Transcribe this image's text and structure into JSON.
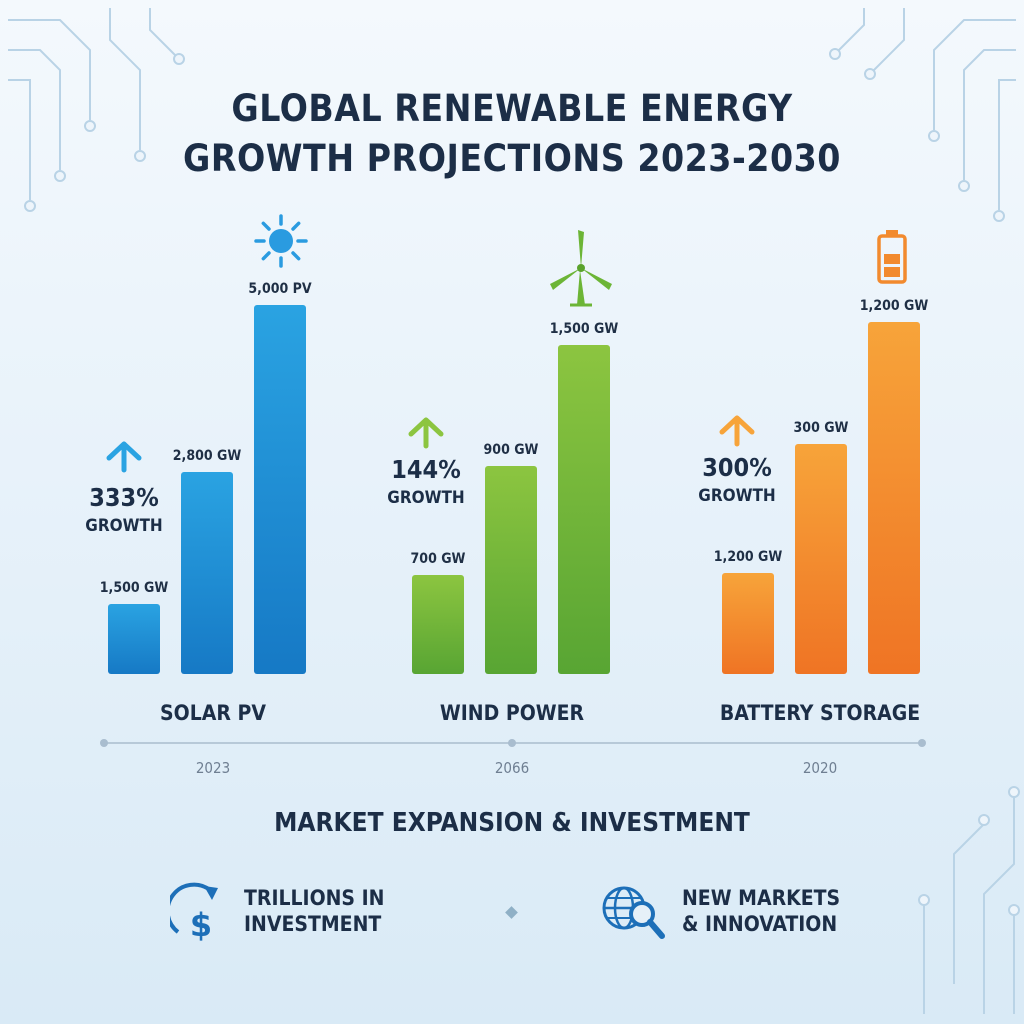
{
  "title": {
    "line1": "GLOBAL RENEWABLE ENERGY",
    "line2": "GROWTH PROJECTIONS 2023-2030"
  },
  "colors": {
    "solar": [
      "#2aa3e2",
      "#1679c5"
    ],
    "wind": [
      "#8cc540",
      "#58a533"
    ],
    "battery": [
      "#f7a43a",
      "#ef7424"
    ],
    "text": "#1c2e47",
    "timeline": "#b7c9d8"
  },
  "chart_data": {
    "type": "bar",
    "groups": [
      {
        "category": "SOLAR PV",
        "icon": "sun-icon",
        "growth_pct": "333%",
        "growth_word": "GROWTH",
        "year": "2023",
        "values": [
          1500,
          2800,
          5000
        ],
        "value_labels": [
          "1,500 GW",
          "2,800 GW",
          "5,000 PV"
        ]
      },
      {
        "category": "WIND POWER",
        "icon": "wind-turbine-icon",
        "growth_pct": "144%",
        "growth_word": "GROWTH",
        "year": "2066",
        "values": [
          700,
          900,
          1500
        ],
        "value_labels": [
          "700 GW",
          "900 GW",
          "1,500 GW"
        ]
      },
      {
        "category": "BATTERY STORAGE",
        "icon": "battery-icon",
        "growth_pct": "300%",
        "growth_word": "GROWTH",
        "year": "2020",
        "values": [
          1200,
          300,
          1200
        ],
        "value_labels": [
          "1,200 GW",
          "300 GW",
          "1,200 GW"
        ]
      }
    ]
  },
  "market": {
    "title": "MARKET EXPANSION & INVESTMENT",
    "items": [
      {
        "icon": "dollar-growth-icon",
        "line1": "TRILLIONS IN",
        "line2": "INVESTMENT"
      },
      {
        "icon": "globe-search-icon",
        "line1": "NEW MARKETS",
        "line2": "& INNOVATION"
      }
    ]
  }
}
